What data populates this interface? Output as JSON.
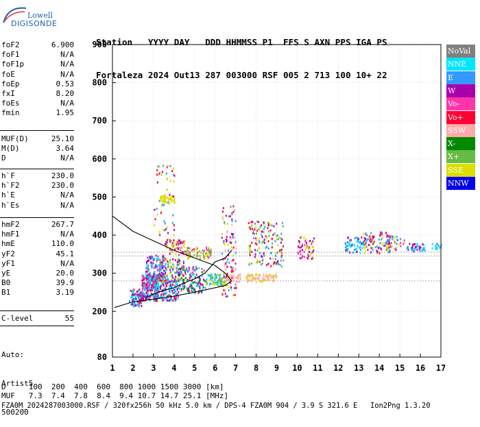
{
  "logo": {
    "line1": "Lowell",
    "line2": "DIGISONDE"
  },
  "header": {
    "row1": "Station   YYYY DAY   DDD HHMMSS P1  FFS S AXN PPS IGA PS",
    "row2": "Fortaleza 2024 Out13 287 003000 RSF 005 2 713 100 10+ 22"
  },
  "params": [
    {
      "group": 1,
      "name": "foF2",
      "value": "6.900"
    },
    {
      "group": 1,
      "name": "foF1",
      "value": "N/A"
    },
    {
      "group": 1,
      "name": "foF1p",
      "value": "N/A"
    },
    {
      "group": 1,
      "name": "foE",
      "value": "N/A"
    },
    {
      "group": 1,
      "name": "foEp",
      "value": "0.53"
    },
    {
      "group": 1,
      "name": "fxI",
      "value": "8.20"
    },
    {
      "group": 1,
      "name": "foEs",
      "value": "N/A"
    },
    {
      "group": 1,
      "name": "fmin",
      "value": "1.95"
    },
    {
      "group": 2,
      "name": "MUF(D)",
      "value": "25.10"
    },
    {
      "group": 2,
      "name": "M(D)",
      "value": "3.64"
    },
    {
      "group": 2,
      "name": "D",
      "value": "N/A"
    },
    {
      "group": 3,
      "name": "h`F",
      "value": "230.0"
    },
    {
      "group": 3,
      "name": "h`F2",
      "value": "230.0"
    },
    {
      "group": 3,
      "name": "h`E",
      "value": "N/A"
    },
    {
      "group": 3,
      "name": "h`Es",
      "value": "N/A"
    },
    {
      "group": 4,
      "name": "hmF2",
      "value": "267.7"
    },
    {
      "group": 4,
      "name": "hmF1",
      "value": "N/A"
    },
    {
      "group": 4,
      "name": "hmE",
      "value": "110.0"
    },
    {
      "group": 4,
      "name": "yF2",
      "value": "45.1"
    },
    {
      "group": 4,
      "name": "yF1",
      "value": "N/A"
    },
    {
      "group": 4,
      "name": "yE",
      "value": "20.0"
    },
    {
      "group": 4,
      "name": "B0",
      "value": "39.9"
    },
    {
      "group": 4,
      "name": "B1",
      "value": "3.19"
    },
    {
      "group": 5,
      "name": "C-level",
      "value": "55"
    }
  ],
  "auto": {
    "line1": "Auto:",
    "line2": "Artist5",
    "line3": "500200"
  },
  "bottom": {
    "d_row": "D     100  200  400  600  800 1000 1500 3000 [km]",
    "muf_row": "MUF   7.3  7.4  7.8  8.4  9.4 10.7 14.7 25.1 [MHz]",
    "file_row": "FZA0M_2024287003000.RSF / 320fx256h 50 kHz 5.0 km / DPS-4 FZA0M 904 / 3.9 S 321.6 E   Ion2Png 1.3.20"
  },
  "legend": [
    {
      "label": "NoVal",
      "bg": "#808080",
      "fg": "#ffffff"
    },
    {
      "label": "NNE",
      "bg": "#00e6ff",
      "fg": "#ffffff"
    },
    {
      "label": "E",
      "bg": "#3399ff",
      "fg": "#ffffff"
    },
    {
      "label": "W",
      "bg": "#aa00aa",
      "fg": "#ffffff"
    },
    {
      "label": "Vo-",
      "bg": "#ff33aa",
      "fg": "#ffffff"
    },
    {
      "label": "Vo+",
      "bg": "#ff0033",
      "fg": "#ffffff"
    },
    {
      "label": "SSW",
      "bg": "#ffaaaa",
      "fg": "#ffffff"
    },
    {
      "label": "X-",
      "bg": "#008800",
      "fg": "#ffffff"
    },
    {
      "label": "X+",
      "bg": "#66bb44",
      "fg": "#ffffff"
    },
    {
      "label": "SSE",
      "bg": "#dddd00",
      "fg": "#ffffff"
    },
    {
      "label": "NNW",
      "bg": "#0000ee",
      "fg": "#ffffff"
    }
  ],
  "chart_data": {
    "type": "scatter",
    "xlim": [
      1,
      17
    ],
    "ylim": [
      80,
      900
    ],
    "x_ticks": [
      1,
      2,
      3,
      4,
      5,
      6,
      7,
      8,
      9,
      10,
      11,
      12,
      13,
      14,
      15,
      16,
      17
    ],
    "y_ticks": [
      80,
      200,
      300,
      400,
      500,
      600,
      700,
      800,
      900
    ],
    "grid": true,
    "legend_position": "right",
    "h_lines": [
      355,
      345,
      280
    ],
    "profile_curve": [
      [
        1.1,
        210
      ],
      [
        2,
        225
      ],
      [
        3,
        232
      ],
      [
        4,
        240
      ],
      [
        5,
        250
      ],
      [
        6,
        262
      ],
      [
        6.5,
        268
      ],
      [
        6.8,
        280
      ],
      [
        6.5,
        300
      ],
      [
        6,
        320
      ],
      [
        5,
        340
      ],
      [
        4,
        360
      ],
      [
        3,
        385
      ],
      [
        2,
        410
      ],
      [
        1,
        450
      ]
    ],
    "trace_curve": [
      [
        2.6,
        235
      ],
      [
        3,
        245
      ],
      [
        3.5,
        255
      ],
      [
        4,
        262
      ],
      [
        4.5,
        275
      ],
      [
        5,
        285
      ],
      [
        5.5,
        300
      ],
      [
        6,
        330
      ],
      [
        6.5,
        340
      ],
      [
        6.8,
        360
      ]
    ],
    "clusters": [
      {
        "x": [
          1.8,
          2.4
        ],
        "y": [
          215,
          260
        ],
        "n": 90,
        "colors": [
          "#ff0033",
          "#aa00aa",
          "#3399ff",
          "#00e6ff"
        ]
      },
      {
        "x": [
          2.4,
          3.2
        ],
        "y": [
          230,
          300
        ],
        "n": 220,
        "colors": [
          "#aa00aa",
          "#ff33aa",
          "#3399ff",
          "#00e6ff",
          "#ff0033"
        ]
      },
      {
        "x": [
          2.6,
          3.6
        ],
        "y": [
          260,
          350
        ],
        "n": 180,
        "colors": [
          "#aa00aa",
          "#ff33aa",
          "#3399ff",
          "#00e6ff"
        ]
      },
      {
        "x": [
          3,
          4.2
        ],
        "y": [
          230,
          285
        ],
        "n": 160,
        "colors": [
          "#3399ff",
          "#00e6ff",
          "#aa00aa",
          "#ff0033"
        ]
      },
      {
        "x": [
          3.2,
          4.5
        ],
        "y": [
          280,
          340
        ],
        "n": 120,
        "colors": [
          "#dddd00",
          "#66bb44",
          "#aa00aa",
          "#3399ff"
        ]
      },
      {
        "x": [
          3.3,
          4
        ],
        "y": [
          485,
          505
        ],
        "n": 45,
        "colors": [
          "#dddd00"
        ]
      },
      {
        "x": [
          3.5,
          4.5
        ],
        "y": [
          350,
          390
        ],
        "n": 70,
        "colors": [
          "#dddd00",
          "#ff33aa",
          "#aa00aa"
        ]
      },
      {
        "x": [
          3,
          4
        ],
        "y": [
          380,
          590
        ],
        "n": 60,
        "colors": [
          "#3399ff",
          "#aa00aa",
          "#dddd00",
          "#ff0033"
        ]
      },
      {
        "x": [
          4.2,
          5.5
        ],
        "y": [
          250,
          320
        ],
        "n": 130,
        "colors": [
          "#aa00aa",
          "#3399ff",
          "#00e6ff",
          "#ff33aa",
          "#008800"
        ]
      },
      {
        "x": [
          4.5,
          5.8
        ],
        "y": [
          340,
          370
        ],
        "n": 80,
        "colors": [
          "#dddd00",
          "#ff33aa",
          "#66bb44"
        ]
      },
      {
        "x": [
          5.5,
          6.6
        ],
        "y": [
          270,
          300
        ],
        "n": 90,
        "colors": [
          "#3399ff",
          "#00e6ff",
          "#66bb44",
          "#dddd00"
        ]
      },
      {
        "x": [
          6.3,
          7
        ],
        "y": [
          240,
          480
        ],
        "n": 110,
        "colors": [
          "#ff0033",
          "#aa00aa",
          "#dddd00",
          "#ffaaaa",
          "#3399ff"
        ]
      },
      {
        "x": [
          6.5,
          7.2
        ],
        "y": [
          280,
          300
        ],
        "n": 40,
        "colors": [
          "#ffaaaa"
        ]
      },
      {
        "x": [
          7.5,
          9
        ],
        "y": [
          280,
          300
        ],
        "n": 80,
        "colors": [
          "#ffaaaa",
          "#dddd00"
        ]
      },
      {
        "x": [
          7.6,
          9.3
        ],
        "y": [
          320,
          440
        ],
        "n": 150,
        "colors": [
          "#dddd00",
          "#aa00aa",
          "#ff0033",
          "#3399ff",
          "#66bb44"
        ]
      },
      {
        "x": [
          10,
          10.8
        ],
        "y": [
          340,
          400
        ],
        "n": 60,
        "colors": [
          "#dddd00",
          "#ff33aa",
          "#aa00aa"
        ]
      },
      {
        "x": [
          12.3,
          13.2
        ],
        "y": [
          355,
          400
        ],
        "n": 60,
        "colors": [
          "#3399ff",
          "#aa00aa",
          "#00e6ff"
        ]
      },
      {
        "x": [
          13.2,
          14.5
        ],
        "y": [
          355,
          410
        ],
        "n": 90,
        "colors": [
          "#aa00aa",
          "#3399ff",
          "#dddd00",
          "#ff0033"
        ]
      },
      {
        "x": [
          14.3,
          15.2
        ],
        "y": [
          360,
          400
        ],
        "n": 40,
        "colors": [
          "#3399ff",
          "#ff33aa",
          "#dddd00"
        ]
      },
      {
        "x": [
          15.3,
          16.2
        ],
        "y": [
          360,
          380
        ],
        "n": 40,
        "colors": [
          "#3399ff",
          "#00e6ff",
          "#aa00aa"
        ]
      },
      {
        "x": [
          16.5,
          17
        ],
        "y": [
          365,
          380
        ],
        "n": 15,
        "colors": [
          "#00e6ff",
          "#3399ff"
        ]
      }
    ]
  }
}
